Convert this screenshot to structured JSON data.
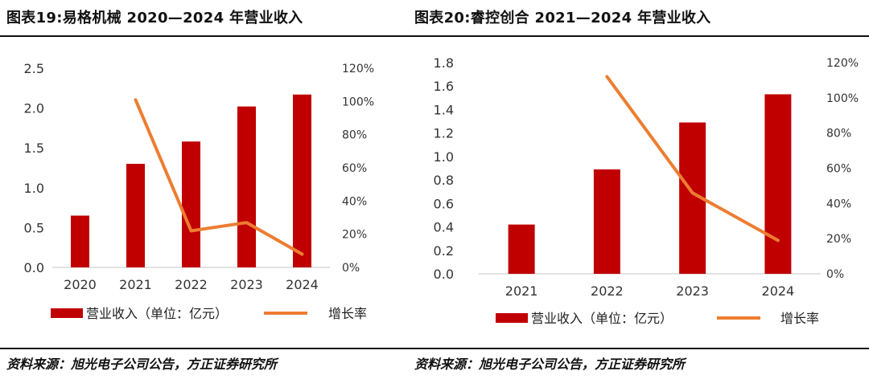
{
  "colors": {
    "bar": "#c00000",
    "line": "#ed7d31"
  },
  "charts": [
    {
      "title": "图表19:易格机械 2020—2024 年营业收入",
      "source": "资料来源：旭光电子公司公告，方正证券研究所",
      "legend": {
        "bar": "营业收入（单位：亿元）",
        "line": "增长率"
      },
      "y_ticks": [
        "2.5",
        "2.0",
        "1.5",
        "1.0",
        "0.5",
        "0.0"
      ],
      "y2_ticks": [
        "120%",
        "100%",
        "80%",
        "60%",
        "40%",
        "20%",
        "0%"
      ]
    },
    {
      "title": "图表20:睿控创合 2021—2024 年营业收入",
      "source": "资料来源：旭光电子公司公告，方正证券研究所",
      "legend": {
        "bar": "营业收入（单位：亿元）",
        "line": "增长率"
      },
      "y_ticks": [
        "1.8",
        "1.6",
        "1.4",
        "1.2",
        "1.0",
        "0.8",
        "0.6",
        "0.4",
        "0.2",
        "0.0"
      ],
      "y2_ticks": [
        "120%",
        "100%",
        "80%",
        "60%",
        "40%",
        "20%",
        "0%"
      ]
    }
  ],
  "chart_data": [
    {
      "type": "bar",
      "categories": [
        "2020",
        "2021",
        "2022",
        "2023",
        "2024"
      ],
      "series": [
        {
          "name": "营业收入（单位：亿元）",
          "type": "bar",
          "axis": "left",
          "values": [
            0.65,
            1.3,
            1.58,
            2.02,
            2.17
          ]
        },
        {
          "name": "增长率",
          "type": "line",
          "axis": "right",
          "values": [
            null,
            101,
            22,
            27,
            8
          ]
        }
      ],
      "ylim": [
        0,
        2.5
      ],
      "y2lim": [
        0,
        120
      ],
      "grid": false,
      "legend_position": "bottom"
    },
    {
      "type": "bar",
      "categories": [
        "2021",
        "2022",
        "2023",
        "2024"
      ],
      "series": [
        {
          "name": "营业收入（单位：亿元）",
          "type": "bar",
          "axis": "left",
          "values": [
            0.42,
            0.89,
            1.29,
            1.53
          ]
        },
        {
          "name": "增长率",
          "type": "line",
          "axis": "right",
          "values": [
            null,
            112,
            46,
            19
          ]
        }
      ],
      "ylim": [
        0,
        1.8
      ],
      "y2lim": [
        0,
        120
      ],
      "grid": false,
      "legend_position": "bottom"
    }
  ]
}
